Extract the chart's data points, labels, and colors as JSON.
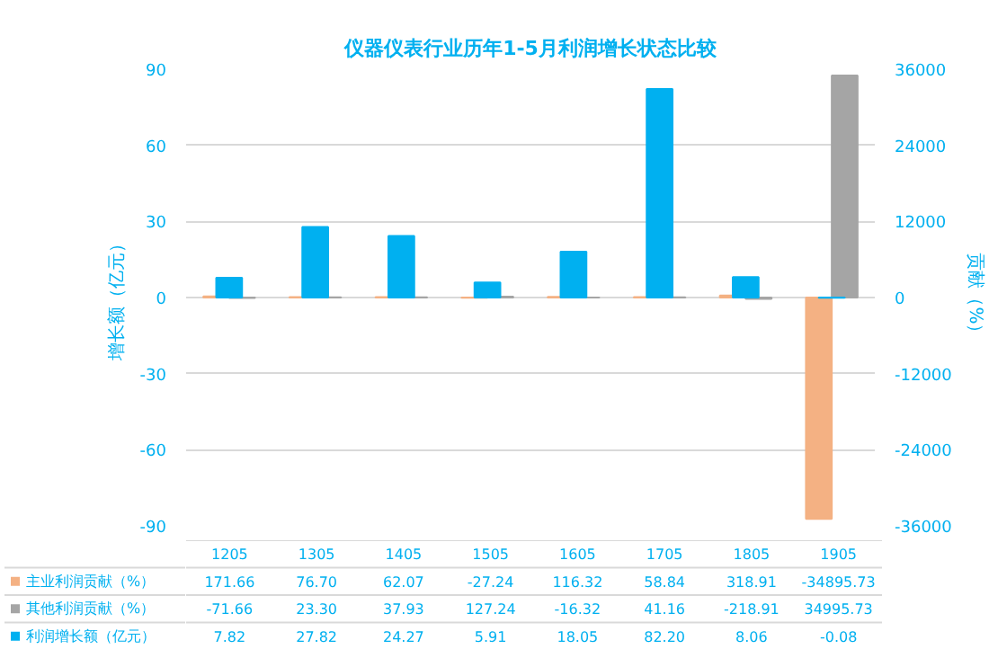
{
  "chart_data": {
    "type": "bar",
    "title": "仪器仪表行业历年1-5月利润增长状态比较",
    "ylabel": "增长额（亿元）",
    "y2label": "贡献（%）",
    "categories": [
      "1205",
      "1305",
      "1405",
      "1505",
      "1605",
      "1705",
      "1805",
      "1905"
    ],
    "series": [
      {
        "name": "主业利润贡献（%）",
        "color": "#f4b183",
        "axis": "y2",
        "values": [
          171.66,
          76.7,
          62.07,
          -27.24,
          116.32,
          58.84,
          318.91,
          -34895.73
        ],
        "value_labels": [
          "171.66",
          "76.70",
          "62.07",
          "-27.24",
          "116.32",
          "58.84",
          "318.91",
          "-34895.73"
        ]
      },
      {
        "name": "其他利润贡献（%）",
        "color": "#a5a5a5",
        "axis": "y2",
        "values": [
          -71.66,
          23.3,
          37.93,
          127.24,
          -16.32,
          41.16,
          -218.91,
          34995.73
        ],
        "value_labels": [
          "-71.66",
          "23.30",
          "37.93",
          "127.24",
          "-16.32",
          "41.16",
          "-218.91",
          "34995.73"
        ]
      },
      {
        "name": "利润增长额（亿元）",
        "color": "#00b0f0",
        "values": [
          7.82,
          27.82,
          24.27,
          5.91,
          18.05,
          82.2,
          8.06,
          -0.08
        ],
        "value_labels": [
          "7.82",
          "27.82",
          "24.27",
          "5.91",
          "18.05",
          "82.20",
          "8.06",
          "-0.08"
        ]
      }
    ],
    "ylim": [
      -90,
      90
    ],
    "yticks": [
      -90,
      -60,
      -30,
      0,
      30,
      60,
      90
    ],
    "y2lim": [
      -36000,
      36000
    ],
    "y2ticks": [
      -36000,
      -24000,
      -12000,
      0,
      12000,
      24000,
      36000
    ],
    "grid": "y",
    "legend": "bottom"
  }
}
